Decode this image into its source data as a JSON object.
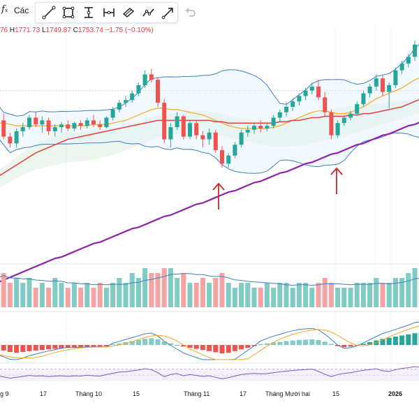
{
  "header": {
    "fx_label": "fₓ",
    "indicators_label": "Các",
    "ohlc": {
      "open": "76",
      "high_prefix": "H",
      "high": "1771.73",
      "low_prefix": "L",
      "low": "1749.87",
      "close_prefix": "C",
      "close": "1753.74",
      "change": "−1.75 (−0.10%)"
    }
  },
  "toolbar": {
    "tools": [
      "trend-line-icon",
      "rectangle-icon",
      "vertical-measure-icon",
      "horizontal-measure-icon",
      "fib-channel-icon",
      "path-icon",
      "arrow-icon"
    ],
    "undo": "undo-icon"
  },
  "colors": {
    "up": "#26a69a",
    "down": "#ef5350",
    "ma_orange": "#f5a623",
    "ma_red": "#e04848",
    "ma_purple": "#8e24aa",
    "bollinger": "#3d7fbf",
    "rsi": "#7e57c2",
    "arrow": "#c62828"
  },
  "chart_data": {
    "type": "candlestick",
    "symbol_price_range": [
      1640,
      1800
    ],
    "candles": [
      [
        1745,
        1752,
        1738,
        1742
      ],
      [
        1742,
        1747,
        1728,
        1730
      ],
      [
        1730,
        1733,
        1722,
        1725
      ],
      [
        1725,
        1736,
        1722,
        1734
      ],
      [
        1734,
        1740,
        1730,
        1737
      ],
      [
        1737,
        1746,
        1735,
        1744
      ],
      [
        1744,
        1748,
        1737,
        1739
      ],
      [
        1739,
        1745,
        1733,
        1742
      ],
      [
        1742,
        1744,
        1731,
        1734
      ],
      [
        1734,
        1739,
        1730,
        1737
      ],
      [
        1737,
        1741,
        1733,
        1739
      ],
      [
        1739,
        1742,
        1734,
        1736
      ],
      [
        1736,
        1741,
        1734,
        1740
      ],
      [
        1740,
        1742,
        1735,
        1738
      ],
      [
        1738,
        1744,
        1736,
        1742
      ],
      [
        1742,
        1746,
        1737,
        1739
      ],
      [
        1739,
        1742,
        1735,
        1737
      ],
      [
        1737,
        1745,
        1736,
        1744
      ],
      [
        1744,
        1752,
        1742,
        1750
      ],
      [
        1750,
        1757,
        1748,
        1755
      ],
      [
        1755,
        1760,
        1752,
        1757
      ],
      [
        1757,
        1764,
        1755,
        1762
      ],
      [
        1762,
        1770,
        1760,
        1768
      ],
      [
        1768,
        1779,
        1766,
        1776
      ],
      [
        1776,
        1780,
        1770,
        1772
      ],
      [
        1772,
        1774,
        1752,
        1755
      ],
      [
        1755,
        1758,
        1725,
        1728
      ],
      [
        1728,
        1740,
        1722,
        1737
      ],
      [
        1737,
        1748,
        1735,
        1745
      ],
      [
        1745,
        1746,
        1728,
        1730
      ],
      [
        1730,
        1742,
        1728,
        1740
      ],
      [
        1740,
        1742,
        1728,
        1731
      ],
      [
        1731,
        1734,
        1722,
        1728
      ],
      [
        1728,
        1736,
        1724,
        1733
      ],
      [
        1733,
        1735,
        1718,
        1720
      ],
      [
        1720,
        1723,
        1707,
        1710
      ],
      [
        1710,
        1718,
        1707,
        1716
      ],
      [
        1716,
        1726,
        1714,
        1724
      ],
      [
        1724,
        1735,
        1722,
        1733
      ],
      [
        1733,
        1738,
        1730,
        1735
      ],
      [
        1735,
        1740,
        1732,
        1738
      ],
      [
        1738,
        1742,
        1733,
        1736
      ],
      [
        1736,
        1740,
        1734,
        1738
      ],
      [
        1738,
        1746,
        1736,
        1744
      ],
      [
        1744,
        1750,
        1741,
        1748
      ],
      [
        1748,
        1755,
        1745,
        1752
      ],
      [
        1752,
        1758,
        1749,
        1756
      ],
      [
        1756,
        1762,
        1753,
        1760
      ],
      [
        1760,
        1766,
        1757,
        1764
      ],
      [
        1764,
        1770,
        1761,
        1767
      ],
      [
        1767,
        1772,
        1757,
        1759
      ],
      [
        1759,
        1763,
        1745,
        1748
      ],
      [
        1748,
        1750,
        1728,
        1731
      ],
      [
        1731,
        1742,
        1729,
        1740
      ],
      [
        1740,
        1746,
        1738,
        1744
      ],
      [
        1744,
        1749,
        1742,
        1747
      ],
      [
        1747,
        1756,
        1745,
        1754
      ],
      [
        1754,
        1764,
        1752,
        1762
      ],
      [
        1762,
        1769,
        1759,
        1767
      ],
      [
        1767,
        1776,
        1764,
        1773
      ],
      [
        1773,
        1775,
        1760,
        1763
      ],
      [
        1763,
        1770,
        1751,
        1768
      ],
      [
        1768,
        1781,
        1766,
        1779
      ],
      [
        1779,
        1786,
        1776,
        1784
      ],
      [
        1784,
        1791,
        1781,
        1789
      ],
      [
        1789,
        1801,
        1786,
        1798
      ],
      [
        1798,
        1802,
        1790,
        1794
      ]
    ],
    "ma_orange": [
      1740,
      1740,
      1739,
      1738,
      1738,
      1738,
      1738,
      1738,
      1738,
      1738,
      1738,
      1738,
      1738,
      1738,
      1738,
      1739,
      1739,
      1739,
      1740,
      1741,
      1742,
      1744,
      1746,
      1748,
      1750,
      1751,
      1751,
      1750,
      1750,
      1749,
      1748,
      1747,
      1746,
      1744,
      1742,
      1740,
      1738,
      1737,
      1736,
      1736,
      1736,
      1736,
      1736,
      1737,
      1738,
      1740,
      1742,
      1744,
      1746,
      1748,
      1749,
      1749,
      1748,
      1747,
      1747,
      1748,
      1750,
      1752,
      1755,
      1758,
      1760,
      1762,
      1764,
      1766,
      1769,
      1772,
      1774
    ],
    "ma_red": [
      1700,
      1703,
      1706,
      1709,
      1712,
      1715,
      1718,
      1720,
      1722,
      1724,
      1726,
      1728,
      1729,
      1730,
      1731,
      1732,
      1733,
      1734,
      1735,
      1736,
      1737,
      1738,
      1739,
      1740,
      1741,
      1742,
      1742,
      1742,
      1742,
      1742,
      1742,
      1742,
      1742,
      1742,
      1741,
      1741,
      1740,
      1740,
      1740,
      1740,
      1740,
      1740,
      1740,
      1740,
      1741,
      1741,
      1742,
      1742,
      1743,
      1744,
      1744,
      1745,
      1745,
      1745,
      1745,
      1746,
      1746,
      1747,
      1747,
      1748,
      1749,
      1750,
      1751,
      1752,
      1754,
      1756,
      1758
    ],
    "ma_purple": [
      1622,
      1624,
      1626,
      1628,
      1630,
      1632,
      1634,
      1636,
      1638,
      1640,
      1641,
      1643,
      1645,
      1647,
      1649,
      1651,
      1652,
      1654,
      1656,
      1658,
      1660,
      1662,
      1663,
      1665,
      1667,
      1669,
      1671,
      1672,
      1674,
      1676,
      1678,
      1680,
      1681,
      1683,
      1685,
      1687,
      1689,
      1690,
      1692,
      1694,
      1696,
      1697,
      1699,
      1701,
      1703,
      1704,
      1706,
      1708,
      1710,
      1711,
      1713,
      1715,
      1717,
      1718,
      1720,
      1722,
      1724,
      1725,
      1727,
      1729,
      1731,
      1732,
      1734,
      1736,
      1738,
      1739,
      1741
    ],
    "volume": [
      6,
      7,
      5,
      6,
      5,
      6,
      4,
      5,
      4,
      6,
      5,
      4,
      5,
      4,
      5,
      4,
      5,
      4,
      5,
      6,
      5,
      7,
      6,
      8,
      7,
      7,
      8,
      8,
      6,
      7,
      5,
      5,
      6,
      5,
      6,
      7,
      5,
      4,
      5,
      5,
      4,
      4,
      5,
      4,
      5,
      5,
      4,
      5,
      5,
      4,
      5,
      6,
      5,
      4,
      4,
      4,
      5,
      5,
      5,
      6,
      5,
      5,
      6,
      6,
      7,
      8,
      7
    ],
    "macd_hist": [
      -1.5,
      -2,
      -2.5,
      -2.8,
      -2.5,
      -2.2,
      -2,
      -1.8,
      -1.6,
      -1.4,
      -1.2,
      -1,
      -1,
      -0.9,
      -0.8,
      -0.7,
      -0.6,
      -0.5,
      0.2,
      0.6,
      1,
      1.4,
      1.8,
      2.2,
      2.4,
      2,
      1.2,
      0.6,
      0,
      -0.6,
      -1,
      -1.4,
      -1.8,
      -2.2,
      -2.6,
      -3,
      -2.8,
      -2.2,
      -1.6,
      -1,
      -0.4,
      0.3,
      0.6,
      0.9,
      1.1,
      1.4,
      1.6,
      1.8,
      1.9,
      2,
      1.8,
      1.2,
      0.4,
      -0.4,
      -0.8,
      -0.6,
      -0.2,
      0.4,
      1,
      1.6,
      2.2,
      2.6,
      3,
      3.4,
      3.8,
      4.2,
      4.4
    ],
    "rsi": [
      48,
      44,
      40,
      43,
      46,
      49,
      47,
      48,
      45,
      47,
      48,
      46,
      48,
      47,
      50,
      48,
      47,
      52,
      56,
      60,
      61,
      64,
      67,
      71,
      68,
      58,
      45,
      52,
      55,
      48,
      52,
      49,
      46,
      48,
      43,
      38,
      42,
      47,
      52,
      54,
      56,
      54,
      55,
      58,
      61,
      63,
      65,
      67,
      68,
      70,
      62,
      53,
      45,
      52,
      56,
      58,
      62,
      66,
      68,
      71,
      64,
      62,
      68,
      72,
      74,
      78,
      74
    ],
    "x_labels": [
      "g 9",
      "17",
      "Tháng 10",
      "15",
      "Tháng 11",
      "17",
      "Tháng Mười hai",
      "15",
      "2026"
    ],
    "annotations": [
      "up-arrow-1",
      "up-arrow-2"
    ]
  }
}
